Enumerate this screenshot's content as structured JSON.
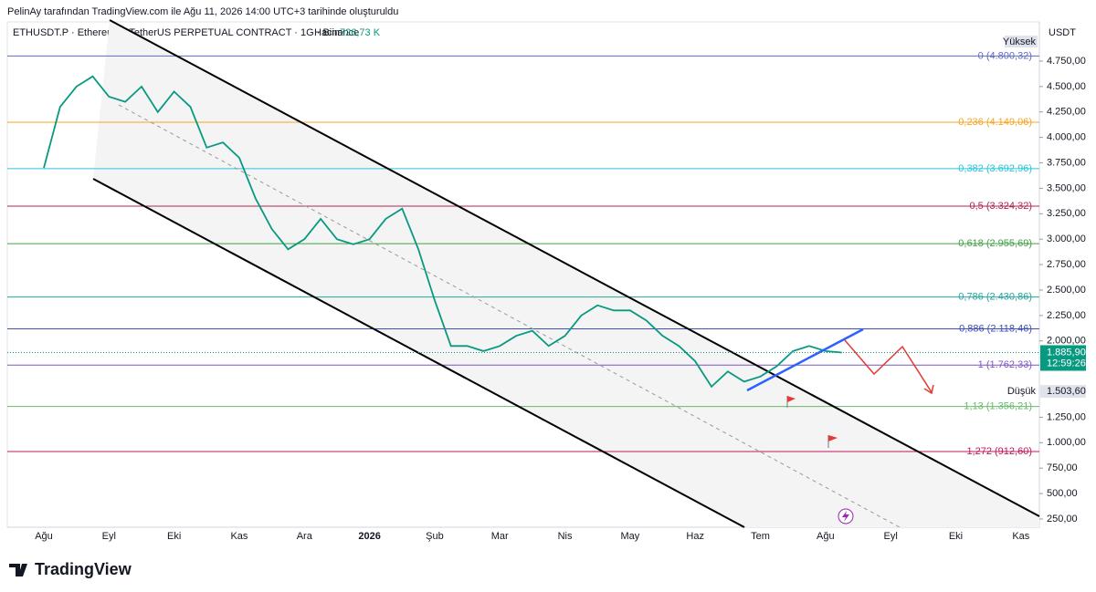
{
  "header": {
    "attribution": "PelinAy tarafından TradingView.com ile Ağu 11, 2026 14:00 UTC+3 tarihinde oluşturuldu",
    "symbol": "ETHUSDT.P · Ethereum / TetherUS PERPETUAL CONTRACT · 1G · Binance",
    "volume_label": "Hacim",
    "volume": "726,73 K"
  },
  "chart_data": {
    "type": "line",
    "categories": [
      "Ağu",
      null,
      null,
      null,
      "Eyl",
      null,
      null,
      null,
      "Eki",
      null,
      null,
      null,
      "Kas",
      null,
      null,
      null,
      "Ara",
      null,
      null,
      null,
      "2026",
      null,
      null,
      null,
      "Şub",
      null,
      null,
      null,
      "Mar",
      null,
      null,
      null,
      "Nis",
      null,
      null,
      null,
      "May",
      null,
      null,
      null,
      "Haz",
      null,
      null,
      null,
      "Tem",
      null,
      null,
      null,
      "Ağu",
      null,
      null,
      null,
      "Eyl",
      null,
      null,
      null,
      "Eki",
      null,
      null,
      null,
      "Kas"
    ],
    "series": [
      {
        "color": "#089981",
        "values": [
          3700,
          4300,
          4500,
          4600,
          4400,
          4350,
          4500,
          4250,
          4450,
          4300,
          3900,
          3950,
          3800,
          3400,
          3100,
          2900,
          3000,
          3200,
          3000,
          2950,
          3000,
          3200,
          3300,
          2900,
          2400,
          1950,
          1950,
          1900,
          1950,
          2050,
          2100,
          1950,
          2050,
          2250,
          2350,
          2300,
          2300,
          2200,
          2050,
          1950,
          1800,
          1550,
          1700,
          1600,
          1650,
          1750,
          1900,
          1950,
          1900,
          1885.9,
          null,
          null,
          null,
          null,
          null,
          null,
          null,
          null,
          null,
          null,
          null
        ]
      }
    ],
    "ylim": [
      169,
      4947
    ],
    "yticks": [
      {
        "value": 250,
        "label": "250,00"
      },
      {
        "value": 500,
        "label": "500,00"
      },
      {
        "value": 750,
        "label": "750,00"
      },
      {
        "value": 1000,
        "label": "1.000,00"
      },
      {
        "value": 1250,
        "label": "1.250,00"
      },
      {
        "value": 2000,
        "label": "2.000,00"
      },
      {
        "value": 2250,
        "label": "2.250,00"
      },
      {
        "value": 2500,
        "label": "2.500,00"
      },
      {
        "value": 2750,
        "label": "2.750,00"
      },
      {
        "value": 3000,
        "label": "3.000,00"
      },
      {
        "value": 3250,
        "label": "3.250,00"
      },
      {
        "value": 3500,
        "label": "3.500,00"
      },
      {
        "value": 3750,
        "label": "3.750,00"
      },
      {
        "value": 4000,
        "label": "4.000,00"
      },
      {
        "value": 4250,
        "label": "4.250,00"
      },
      {
        "value": 4500,
        "label": "4.500,00"
      },
      {
        "value": 4750,
        "label": "4.750,00"
      }
    ],
    "currency": "USDT",
    "fib_levels": [
      {
        "value": 4800.32,
        "label": "0 (4.800,32)",
        "color": "#5c6bc0"
      },
      {
        "value": 4149.06,
        "label": "0,236 (4.149,06)",
        "color": "#f5a623"
      },
      {
        "value": 3692.96,
        "label": "0,382 (3.692,96)",
        "color": "#26c6da"
      },
      {
        "value": 3324.32,
        "label": "0,5 (3.324,32)",
        "color": "#b0274f"
      },
      {
        "value": 2955.69,
        "label": "0,618 (2.955,69)",
        "color": "#43a047"
      },
      {
        "value": 2430.86,
        "label": "0,786 (2.430,86)",
        "color": "#26a69a"
      },
      {
        "value": 2118.46,
        "label": "0,886 (2.118,46)",
        "color": "#3f51b5"
      },
      {
        "value": 1762.33,
        "label": "1 (1.762,33)",
        "color": "#7e57c2"
      },
      {
        "value": 1356.21,
        "label": "1,13 (1.356,21)",
        "color": "#66bb6a"
      },
      {
        "value": 912.6,
        "label": "1,272 (912,60)",
        "color": "#c2185b"
      }
    ],
    "high_label": "Yüksek",
    "last_price": {
      "value": 1885.9,
      "label": "1.885,90"
    },
    "countdown": "12:59:26",
    "low_label": "Düşük",
    "low": {
      "value": 1503.6,
      "label": "1.503,60"
    }
  },
  "footer": {
    "brand": "TradingView"
  }
}
